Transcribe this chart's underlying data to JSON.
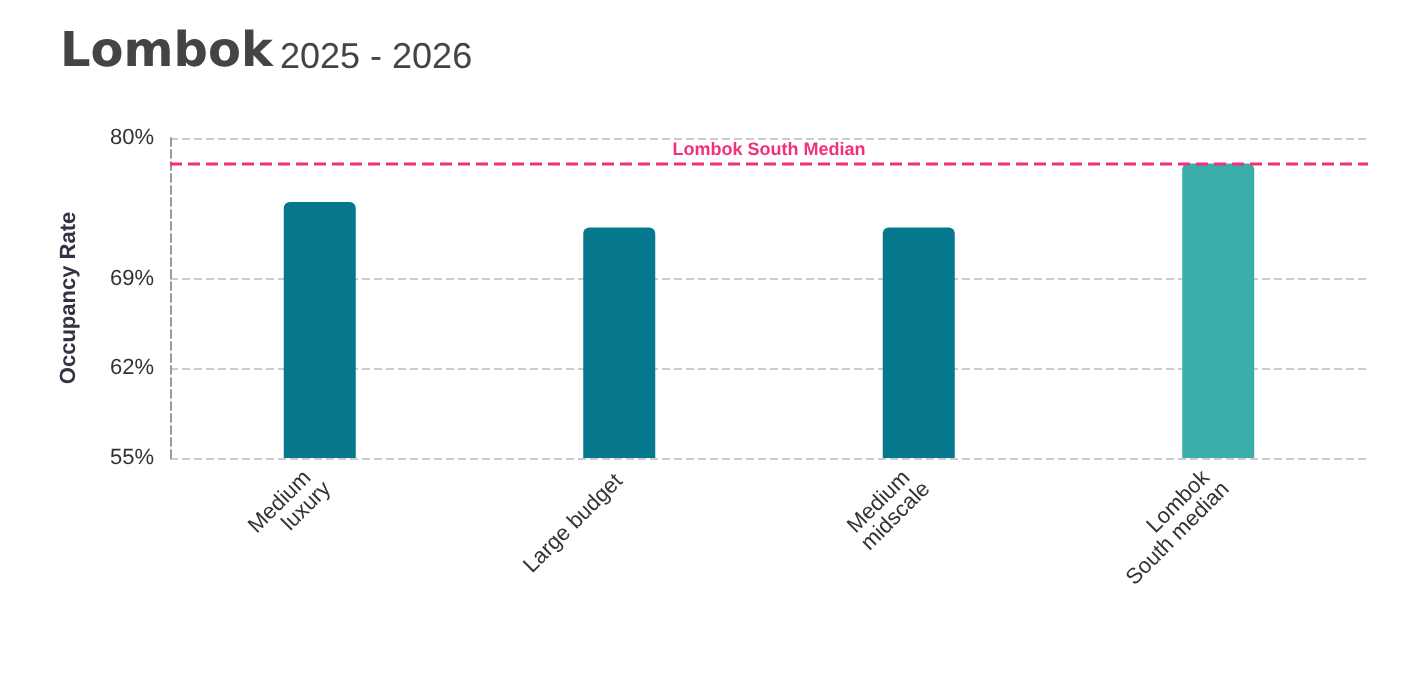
{
  "chart_data": {
    "type": "bar",
    "title": "Lombok",
    "subtitle": "2025 - 2026",
    "ylabel": "Occupancy Rate",
    "categories": [
      "Medium luxury",
      "Large budget",
      "Medium midscale",
      "Lombok South median"
    ],
    "values": [
      75,
      73,
      73,
      78
    ],
    "colors": [
      "#05788e",
      "#05788e",
      "#05788e",
      "#3aafa9"
    ],
    "ylim": [
      55,
      80
    ],
    "yticks": [
      {
        "value": 55,
        "label": "55%"
      },
      {
        "value": 62,
        "label": "62%"
      },
      {
        "value": 69,
        "label": "69%"
      },
      {
        "value": 80,
        "label": "80%"
      }
    ],
    "ref_lines": [
      {
        "axis": "y",
        "value": 78,
        "label": "Lombok South Median",
        "color": "#f0307a",
        "line_style": "dashed"
      }
    ],
    "grid": "y"
  }
}
